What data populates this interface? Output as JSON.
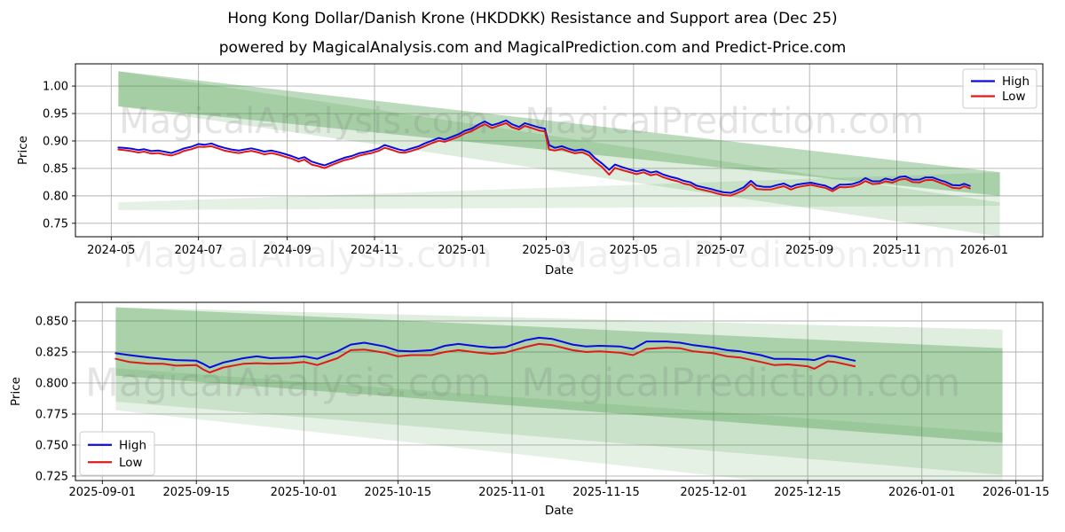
{
  "title": "Hong Kong Dollar/Danish Krone (HKDDKK) Resistance and Support area (Dec 25)",
  "subtitle": "powered by MagicalAnalysis.com and MagicalPrediction.com and Predict-Price.com",
  "colors": {
    "high": "#0b0bdf",
    "low": "#e01919",
    "band": "#2f8f2f",
    "grid": "#b0b0b0",
    "spine": "#000000",
    "watermark": "#7a7a7a",
    "legend_border": "#cccccc",
    "legend_bg": "#ffffff"
  },
  "chart_data": [
    {
      "type": "line",
      "xlabel": "Date",
      "ylabel": "Price",
      "x_domain": [
        "2024-04-06",
        "2026-02-11"
      ],
      "y_domain": [
        0.7255,
        1.0405
      ],
      "x_ticks": [
        {
          "d": "2024-05-01",
          "label": "2024-05"
        },
        {
          "d": "2024-07-01",
          "label": "2024-07"
        },
        {
          "d": "2024-09-01",
          "label": "2024-09"
        },
        {
          "d": "2024-11-01",
          "label": "2024-11"
        },
        {
          "d": "2025-01-01",
          "label": "2025-01"
        },
        {
          "d": "2025-03-01",
          "label": "2025-03"
        },
        {
          "d": "2025-05-01",
          "label": "2025-05"
        },
        {
          "d": "2025-07-01",
          "label": "2025-07"
        },
        {
          "d": "2025-09-01",
          "label": "2025-09"
        },
        {
          "d": "2025-11-01",
          "label": "2025-11"
        },
        {
          "d": "2026-01-01",
          "label": "2026-01"
        }
      ],
      "y_ticks": [
        {
          "v": 0.75,
          "label": "0.75"
        },
        {
          "v": 0.8,
          "label": "0.80"
        },
        {
          "v": 0.85,
          "label": "0.85"
        },
        {
          "v": 0.9,
          "label": "0.90"
        },
        {
          "v": 0.95,
          "label": "0.95"
        },
        {
          "v": 1.0,
          "label": "1.00"
        }
      ],
      "legend_entries": [
        "High",
        "Low"
      ],
      "legend_position": "top-right",
      "dates": [
        "2024-05-06",
        "2024-05-10",
        "2024-05-15",
        "2024-05-20",
        "2024-05-24",
        "2024-05-29",
        "2024-06-03",
        "2024-06-07",
        "2024-06-12",
        "2024-06-17",
        "2024-06-21",
        "2024-06-26",
        "2024-07-01",
        "2024-07-05",
        "2024-07-10",
        "2024-07-15",
        "2024-07-19",
        "2024-07-24",
        "2024-07-29",
        "2024-08-02",
        "2024-08-07",
        "2024-08-12",
        "2024-08-16",
        "2024-08-21",
        "2024-08-26",
        "2024-08-30",
        "2024-09-04",
        "2024-09-09",
        "2024-09-13",
        "2024-09-18",
        "2024-09-23",
        "2024-09-27",
        "2024-10-02",
        "2024-10-07",
        "2024-10-11",
        "2024-10-16",
        "2024-10-21",
        "2024-10-25",
        "2024-10-30",
        "2024-11-04",
        "2024-11-08",
        "2024-11-13",
        "2024-11-18",
        "2024-11-22",
        "2024-11-27",
        "2024-12-02",
        "2024-12-06",
        "2024-12-11",
        "2024-12-16",
        "2024-12-20",
        "2024-12-25",
        "2024-12-30",
        "2025-01-03",
        "2025-01-08",
        "2025-01-13",
        "2025-01-17",
        "2025-01-22",
        "2025-01-27",
        "2025-02-01",
        "2025-02-05",
        "2025-02-10",
        "2025-02-14",
        "2025-02-19",
        "2025-02-24",
        "2025-02-28",
        "2025-03-03",
        "2025-03-07",
        "2025-03-12",
        "2025-03-17",
        "2025-03-21",
        "2025-03-26",
        "2025-03-31",
        "2025-04-04",
        "2025-04-09",
        "2025-04-14",
        "2025-04-18",
        "2025-04-23",
        "2025-04-28",
        "2025-05-03",
        "2025-05-08",
        "2025-05-13",
        "2025-05-17",
        "2025-05-22",
        "2025-05-27",
        "2025-06-01",
        "2025-06-05",
        "2025-06-10",
        "2025-06-14",
        "2025-06-19",
        "2025-06-24",
        "2025-06-28",
        "2025-07-03",
        "2025-07-08",
        "2025-07-12",
        "2025-07-17",
        "2025-07-22",
        "2025-07-26",
        "2025-07-31",
        "2025-08-05",
        "2025-08-09",
        "2025-08-14",
        "2025-08-19",
        "2025-08-23",
        "2025-08-28",
        "2025-09-02",
        "2025-09-08",
        "2025-09-12",
        "2025-09-17",
        "2025-09-22",
        "2025-09-26",
        "2025-10-01",
        "2025-10-06",
        "2025-10-10",
        "2025-10-15",
        "2025-10-20",
        "2025-10-24",
        "2025-10-29",
        "2025-11-03",
        "2025-11-07",
        "2025-11-12",
        "2025-11-17",
        "2025-11-21",
        "2025-11-26",
        "2025-12-01",
        "2025-12-05",
        "2025-12-10",
        "2025-12-15",
        "2025-12-18",
        "2025-12-22"
      ],
      "high": [
        0.888,
        0.8875,
        0.886,
        0.8835,
        0.885,
        0.8815,
        0.8825,
        0.8805,
        0.878,
        0.8825,
        0.8865,
        0.8895,
        0.8945,
        0.893,
        0.8955,
        0.8905,
        0.8875,
        0.8845,
        0.8825,
        0.8845,
        0.8865,
        0.8835,
        0.8805,
        0.8825,
        0.8795,
        0.8765,
        0.8725,
        0.8675,
        0.8705,
        0.8625,
        0.8585,
        0.8555,
        0.8605,
        0.8655,
        0.8695,
        0.8725,
        0.8775,
        0.8795,
        0.8825,
        0.8865,
        0.8925,
        0.8885,
        0.8845,
        0.8825,
        0.8865,
        0.8905,
        0.8955,
        0.9005,
        0.9055,
        0.9025,
        0.9075,
        0.9125,
        0.9185,
        0.9225,
        0.9305,
        0.9355,
        0.9285,
        0.9325,
        0.9375,
        0.9305,
        0.9255,
        0.9325,
        0.9285,
        0.9245,
        0.9225,
        0.8925,
        0.8875,
        0.8905,
        0.8855,
        0.8825,
        0.8845,
        0.8795,
        0.869,
        0.859,
        0.8475,
        0.857,
        0.8525,
        0.8485,
        0.8445,
        0.8475,
        0.8425,
        0.8445,
        0.8385,
        0.8345,
        0.8315,
        0.8275,
        0.8245,
        0.8185,
        0.8155,
        0.8125,
        0.8095,
        0.8065,
        0.8055,
        0.8095,
        0.8155,
        0.8275,
        0.8185,
        0.8165,
        0.8165,
        0.8195,
        0.8225,
        0.8165,
        0.8205,
        0.8225,
        0.824,
        0.8205,
        0.8185,
        0.8125,
        0.8205,
        0.8205,
        0.8215,
        0.8255,
        0.8325,
        0.8265,
        0.8265,
        0.8315,
        0.8285,
        0.8345,
        0.8355,
        0.8295,
        0.8295,
        0.8335,
        0.8335,
        0.8285,
        0.8255,
        0.8195,
        0.819,
        0.822,
        0.818
      ],
      "low": [
        0.8845,
        0.8835,
        0.8815,
        0.879,
        0.8805,
        0.877,
        0.878,
        0.8755,
        0.8735,
        0.8775,
        0.882,
        0.885,
        0.8895,
        0.889,
        0.8905,
        0.886,
        0.8825,
        0.88,
        0.878,
        0.88,
        0.882,
        0.879,
        0.8755,
        0.878,
        0.875,
        0.8715,
        0.868,
        0.8625,
        0.866,
        0.857,
        0.854,
        0.8505,
        0.856,
        0.861,
        0.865,
        0.868,
        0.873,
        0.8755,
        0.878,
        0.882,
        0.8875,
        0.884,
        0.8795,
        0.8785,
        0.882,
        0.886,
        0.8905,
        0.896,
        0.9005,
        0.8985,
        0.903,
        0.908,
        0.9135,
        0.918,
        0.9255,
        0.9305,
        0.9235,
        0.928,
        0.9325,
        0.925,
        0.921,
        0.9275,
        0.9235,
        0.919,
        0.9175,
        0.8845,
        0.8825,
        0.8855,
        0.8805,
        0.8775,
        0.8795,
        0.8735,
        0.8625,
        0.8525,
        0.8385,
        0.851,
        0.847,
        0.8435,
        0.8395,
        0.843,
        0.8375,
        0.8395,
        0.8335,
        0.8295,
        0.8265,
        0.8225,
        0.8195,
        0.8135,
        0.8105,
        0.8075,
        0.8045,
        0.8015,
        0.8005,
        0.8045,
        0.8105,
        0.8215,
        0.8125,
        0.8115,
        0.8115,
        0.8145,
        0.8175,
        0.8115,
        0.8155,
        0.818,
        0.82,
        0.8165,
        0.8145,
        0.8085,
        0.816,
        0.8155,
        0.817,
        0.821,
        0.827,
        0.8215,
        0.8225,
        0.8265,
        0.824,
        0.8295,
        0.831,
        0.825,
        0.8245,
        0.8285,
        0.829,
        0.824,
        0.8205,
        0.8145,
        0.8135,
        0.8175,
        0.8135
      ],
      "bands": [
        {
          "x0": "2024-05-06",
          "x1": "2026-01-12",
          "top0": 1.027,
          "bot0": 0.963,
          "top1": 0.843,
          "bot1": 0.8,
          "opacity": 0.32
        },
        {
          "x0": "2024-05-06",
          "x1": "2026-01-12",
          "top0": 1.027,
          "bot0": 0.963,
          "top1": 0.788,
          "bot1": 0.726,
          "opacity": 0.16
        },
        {
          "x0": "2024-05-06",
          "x1": "2026-01-12",
          "top0": 0.788,
          "bot0": 0.774,
          "top1": 0.843,
          "bot1": 0.782,
          "opacity": 0.13
        }
      ],
      "watermarks": [
        {
          "text": "MagicalAnalysis.com",
          "fx": 0.236,
          "fy": 0.4,
          "size": 40,
          "opacity": 0.2
        },
        {
          "text": "MagicalPrediction.com",
          "fx": 0.671,
          "fy": 0.4,
          "size": 40,
          "opacity": 0.2
        },
        {
          "text": "MagicalAnalysis.com",
          "fx": 0.24,
          "fy": 1.175,
          "size": 40,
          "opacity": 0.12
        },
        {
          "text": "MagicalPrediction.com",
          "fx": 0.704,
          "fy": 1.175,
          "size": 40,
          "opacity": 0.12
        }
      ]
    },
    {
      "type": "line",
      "xlabel": "Date",
      "ylabel": "Price",
      "x_domain": [
        "2025-08-28",
        "2026-01-19"
      ],
      "y_domain": [
        0.7214,
        0.865
      ],
      "x_ticks": [
        {
          "d": "2025-09-01",
          "label": "2025-09-01"
        },
        {
          "d": "2025-09-15",
          "label": "2025-09-15"
        },
        {
          "d": "2025-10-01",
          "label": "2025-10-01"
        },
        {
          "d": "2025-10-15",
          "label": "2025-10-15"
        },
        {
          "d": "2025-11-01",
          "label": "2025-11-01"
        },
        {
          "d": "2025-11-15",
          "label": "2025-11-15"
        },
        {
          "d": "2025-12-01",
          "label": "2025-12-01"
        },
        {
          "d": "2025-12-15",
          "label": "2025-12-15"
        },
        {
          "d": "2026-01-01",
          "label": "2026-01-01"
        },
        {
          "d": "2026-01-15",
          "label": "2026-01-15"
        }
      ],
      "y_ticks": [
        {
          "v": 0.725,
          "label": "0.725"
        },
        {
          "v": 0.75,
          "label": "0.750"
        },
        {
          "v": 0.775,
          "label": "0.775"
        },
        {
          "v": 0.8,
          "label": "0.800"
        },
        {
          "v": 0.825,
          "label": "0.825"
        },
        {
          "v": 0.85,
          "label": "0.850"
        }
      ],
      "legend_entries": [
        "High",
        "Low"
      ],
      "legend_position": "bottom-left",
      "dates": [
        "2025-09-03",
        "2025-09-05",
        "2025-09-08",
        "2025-09-10",
        "2025-09-12",
        "2025-09-15",
        "2025-09-16",
        "2025-09-17",
        "2025-09-19",
        "2025-09-22",
        "2025-09-24",
        "2025-09-26",
        "2025-09-29",
        "2025-10-01",
        "2025-10-03",
        "2025-10-06",
        "2025-10-08",
        "2025-10-10",
        "2025-10-13",
        "2025-10-15",
        "2025-10-17",
        "2025-10-20",
        "2025-10-22",
        "2025-10-24",
        "2025-10-27",
        "2025-10-29",
        "2025-10-31",
        "2025-11-03",
        "2025-11-05",
        "2025-11-07",
        "2025-11-10",
        "2025-11-12",
        "2025-11-14",
        "2025-11-17",
        "2025-11-19",
        "2025-11-21",
        "2025-11-24",
        "2025-11-26",
        "2025-11-28",
        "2025-12-01",
        "2025-12-03",
        "2025-12-05",
        "2025-12-08",
        "2025-12-10",
        "2025-12-12",
        "2025-12-15",
        "2025-12-16",
        "2025-12-18",
        "2025-12-19",
        "2025-12-22"
      ],
      "high": [
        0.824,
        0.8225,
        0.8205,
        0.8195,
        0.8185,
        0.818,
        0.8155,
        0.8125,
        0.8165,
        0.82,
        0.8215,
        0.82,
        0.8205,
        0.8215,
        0.8195,
        0.8255,
        0.831,
        0.8325,
        0.8295,
        0.826,
        0.8255,
        0.8265,
        0.83,
        0.8315,
        0.8295,
        0.8285,
        0.829,
        0.8345,
        0.8365,
        0.8355,
        0.831,
        0.8295,
        0.83,
        0.8295,
        0.8275,
        0.8335,
        0.8335,
        0.8325,
        0.8305,
        0.8285,
        0.8265,
        0.8255,
        0.8225,
        0.8195,
        0.8195,
        0.819,
        0.8185,
        0.822,
        0.8215,
        0.818
      ],
      "low": [
        0.8195,
        0.817,
        0.8155,
        0.8155,
        0.814,
        0.8145,
        0.811,
        0.8085,
        0.8125,
        0.8155,
        0.816,
        0.8155,
        0.816,
        0.817,
        0.8145,
        0.82,
        0.8265,
        0.827,
        0.8245,
        0.8215,
        0.8225,
        0.8225,
        0.825,
        0.8265,
        0.8245,
        0.8235,
        0.8245,
        0.829,
        0.8315,
        0.8305,
        0.8265,
        0.825,
        0.8255,
        0.8245,
        0.8225,
        0.8275,
        0.8285,
        0.828,
        0.8255,
        0.824,
        0.8215,
        0.8205,
        0.817,
        0.8145,
        0.815,
        0.8135,
        0.8115,
        0.8175,
        0.817,
        0.8135
      ],
      "bands": [
        {
          "x0": "2025-09-03",
          "x1": "2026-01-13",
          "top0": 0.861,
          "bot0": 0.806,
          "top1": 0.828,
          "bot1": 0.752,
          "opacity": 0.3
        },
        {
          "x0": "2025-09-03",
          "x1": "2026-01-13",
          "top0": 0.861,
          "bot0": 0.785,
          "top1": 0.843,
          "bot1": 0.726,
          "opacity": 0.15
        },
        {
          "x0": "2025-09-03",
          "x1": "2026-01-13",
          "top0": 0.812,
          "bot0": 0.778,
          "top1": 0.76,
          "bot1": 0.7,
          "opacity": 0.12
        }
      ],
      "watermarks": [
        {
          "text": "MagicalAnalysis.com",
          "fx": 0.22,
          "fy": 0.525,
          "size": 44,
          "opacity": 0.2
        },
        {
          "text": "MagicalPrediction.com",
          "fx": 0.688,
          "fy": 0.525,
          "size": 44,
          "opacity": 0.2
        }
      ]
    }
  ]
}
